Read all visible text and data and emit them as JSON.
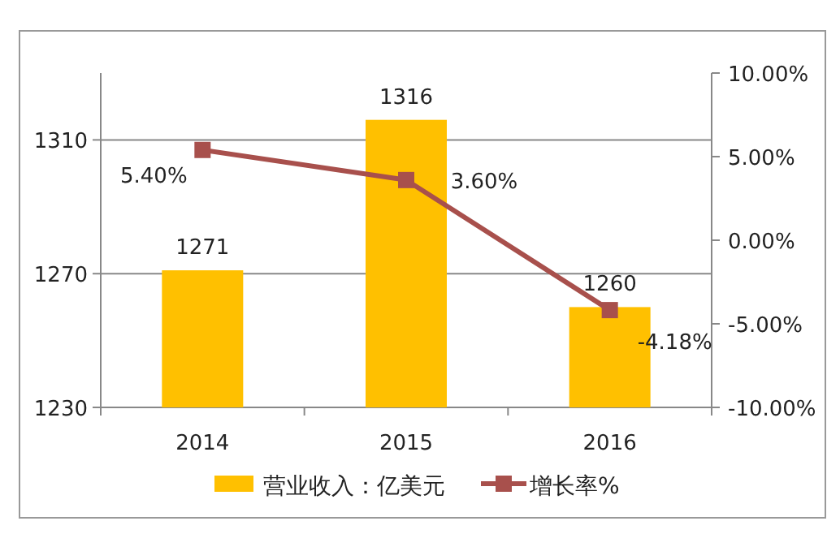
{
  "chart_data": {
    "type": "bar",
    "categories": [
      "2014",
      "2015",
      "2016"
    ],
    "series": [
      {
        "name": "营业收入：亿美元",
        "color": "#ffc000",
        "values": [
          1271,
          1316,
          1260
        ],
        "value_labels": [
          "1271",
          "1316",
          "1260"
        ]
      },
      {
        "name": "增长率%",
        "type": "line",
        "axis": "y2",
        "color": "#a8504c",
        "values": [
          5.4,
          3.6,
          -4.18
        ],
        "value_labels": [
          "5.40%",
          "3.60%",
          "-4.18%"
        ],
        "marker": "square"
      }
    ],
    "ylim": [
      1230,
      1330
    ],
    "yticks": [
      1230,
      1270,
      1310
    ],
    "y2lim": [
      -10,
      10
    ],
    "y2ticks": [
      {
        "value": 10,
        "label": "10.00%"
      },
      {
        "value": 5,
        "label": "5.00%"
      },
      {
        "value": 0,
        "label": "0.00%"
      },
      {
        "value": -5,
        "label": "-5.00%"
      },
      {
        "value": -10,
        "label": "-10.00%"
      }
    ],
    "grid": "y",
    "legend": "bottom"
  }
}
